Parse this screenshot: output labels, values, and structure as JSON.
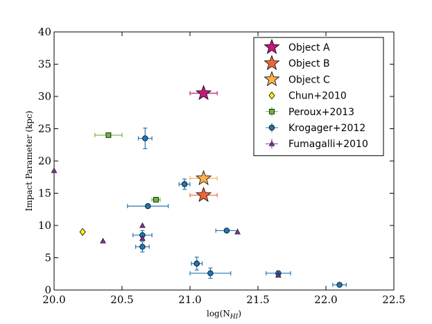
{
  "chart_data": {
    "type": "scatter",
    "title": "",
    "xlabel": "log(N",
    "xlabel_sub": "HI",
    "xlabel_close": ")",
    "ylabel": "Impact Parameter (kpc)",
    "xlim": [
      20.0,
      22.5
    ],
    "ylim": [
      0,
      40
    ],
    "xticks": [
      20.0,
      20.5,
      21.0,
      21.5,
      22.0,
      22.5
    ],
    "xtick_labels": [
      "20.0",
      "20.5",
      "21.0",
      "21.5",
      "22.0",
      "22.5"
    ],
    "yticks": [
      0,
      5,
      10,
      15,
      20,
      25,
      30,
      35,
      40
    ],
    "ytick_labels": [
      "0",
      "5",
      "10",
      "15",
      "20",
      "25",
      "30",
      "35",
      "40"
    ],
    "legend_position": "top-right",
    "series": [
      {
        "name": "Object A",
        "marker": "star",
        "color": "#c7177f",
        "errcolor": "#c7177f",
        "points": [
          {
            "x": 21.1,
            "y": 30.5,
            "xerr": 0.1,
            "yerr": 0
          }
        ]
      },
      {
        "name": "Object B",
        "marker": "star",
        "color": "#f0653b",
        "errcolor": "#f0653b",
        "points": [
          {
            "x": 21.1,
            "y": 14.7,
            "xerr": 0.1,
            "yerr": 0
          }
        ]
      },
      {
        "name": "Object C",
        "marker": "star",
        "color": "#fbb14d",
        "errcolor": "#fbb14d",
        "points": [
          {
            "x": 21.1,
            "y": 17.3,
            "xerr": 0.1,
            "yerr": 0
          }
        ]
      },
      {
        "name": "Chun+2010",
        "marker": "diamond",
        "color": "#fbf510",
        "errcolor": "#fbf510",
        "points": [
          {
            "x": 20.21,
            "y": 9.0,
            "xerr": 0,
            "yerr": 0
          }
        ]
      },
      {
        "name": "Peroux+2013",
        "marker": "square",
        "color": "#67b83c",
        "errcolor": "#67b83c",
        "points": [
          {
            "x": 20.4,
            "y": 24.0,
            "xerr": 0.1,
            "yerr": 0
          },
          {
            "x": 20.75,
            "y": 14.0,
            "xerr": 0.03,
            "yerr": 0
          }
        ]
      },
      {
        "name": "Krogager+2012",
        "marker": "circle",
        "color": "#1f77b4",
        "errcolor": "#1f77b4",
        "points": [
          {
            "x": 20.67,
            "y": 23.5,
            "xerr": 0.05,
            "yerr": 1.6
          },
          {
            "x": 20.96,
            "y": 16.4,
            "xerr": 0.04,
            "yerr": 0.8
          },
          {
            "x": 20.69,
            "y": 13.0,
            "xerr": 0.15,
            "yerr": 0
          },
          {
            "x": 20.65,
            "y": 8.5,
            "xerr": 0.07,
            "yerr": 0.7
          },
          {
            "x": 20.65,
            "y": 6.7,
            "xerr": 0.05,
            "yerr": 0.8
          },
          {
            "x": 21.27,
            "y": 9.2,
            "xerr": 0.08,
            "yerr": 0
          },
          {
            "x": 21.05,
            "y": 4.1,
            "xerr": 0.04,
            "yerr": 1.0
          },
          {
            "x": 21.15,
            "y": 2.6,
            "xerr": 0.15,
            "yerr": 0.8
          },
          {
            "x": 21.65,
            "y": 2.6,
            "xerr": 0.09,
            "yerr": 0
          },
          {
            "x": 22.1,
            "y": 0.8,
            "xerr": 0.05,
            "yerr": 0
          }
        ]
      },
      {
        "name": "Fumagalli+2010",
        "marker": "triangle",
        "color": "#7b3294",
        "errcolor": "#7b3294",
        "points": [
          {
            "x": 20.0,
            "y": 18.5,
            "xerr": 0,
            "yerr": 0
          },
          {
            "x": 20.36,
            "y": 7.6,
            "xerr": 0,
            "yerr": 0
          },
          {
            "x": 20.65,
            "y": 10.0,
            "xerr": 0,
            "yerr": 0
          },
          {
            "x": 20.65,
            "y": 8.0,
            "xerr": 0,
            "yerr": 0
          },
          {
            "x": 21.35,
            "y": 9.0,
            "xerr": 0,
            "yerr": 0
          },
          {
            "x": 21.65,
            "y": 2.3,
            "xerr": 0,
            "yerr": 0
          }
        ]
      }
    ]
  }
}
